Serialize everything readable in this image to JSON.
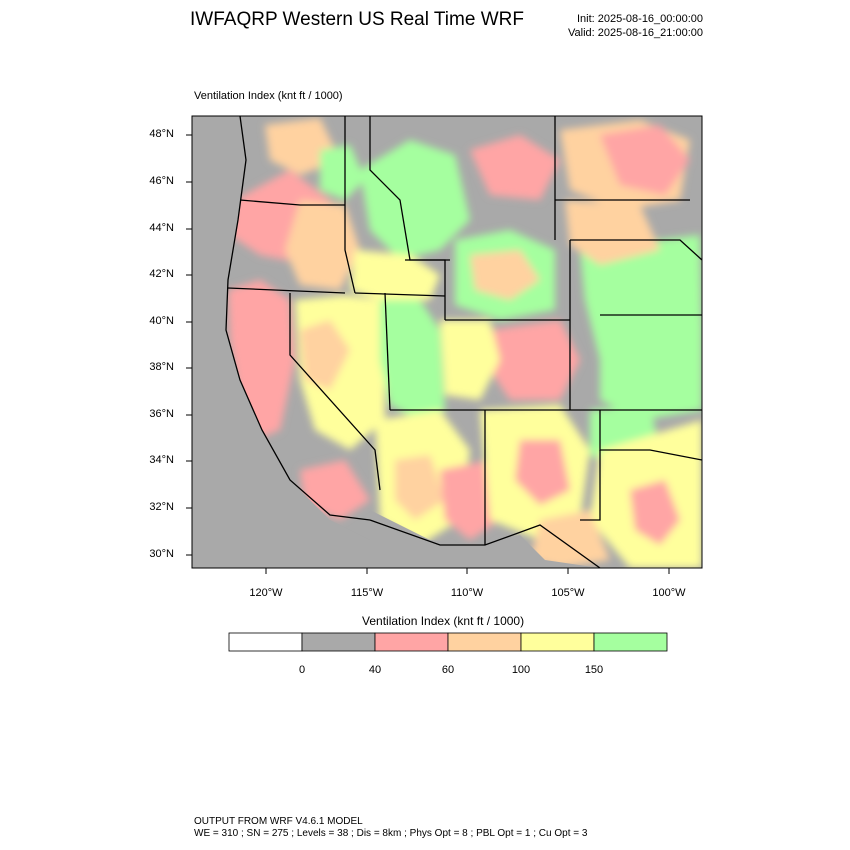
{
  "header": {
    "title": "IWFAQRP Western US Real Time WRF",
    "init": "Init: 2025-08-16_00:00:00",
    "valid": "Valid: 2025-08-16_21:00:00"
  },
  "map": {
    "field_label": "Ventilation Index   (knt ft / 1000)",
    "lat_labels": [
      "48°N",
      "46°N",
      "44°N",
      "42°N",
      "40°N",
      "38°N",
      "36°N",
      "34°N",
      "32°N",
      "30°N"
    ],
    "lon_labels": [
      "120°W",
      "115°W",
      "110°W",
      "105°W",
      "100°W"
    ],
    "background_color": "#a9a9a9"
  },
  "colorbar": {
    "title": "Ventilation Index   (knt ft / 1000)",
    "bins": [
      {
        "color": "#ffffff"
      },
      {
        "color": "#a9a9a9"
      },
      {
        "color": "#ffa5a5"
      },
      {
        "color": "#ffd2a0"
      },
      {
        "color": "#ffff9c"
      },
      {
        "color": "#a5ff9f"
      }
    ],
    "tick_labels": [
      "0",
      "40",
      "60",
      "100",
      "150"
    ]
  },
  "footer": {
    "line1": "OUTPUT FROM WRF V4.6.1 MODEL",
    "line2": "WE = 310 ; SN = 275 ; Levels = 38 ; Dis = 8km ; Phys Opt = 8 ; PBL Opt = 1 ; Cu Opt = 3"
  }
}
